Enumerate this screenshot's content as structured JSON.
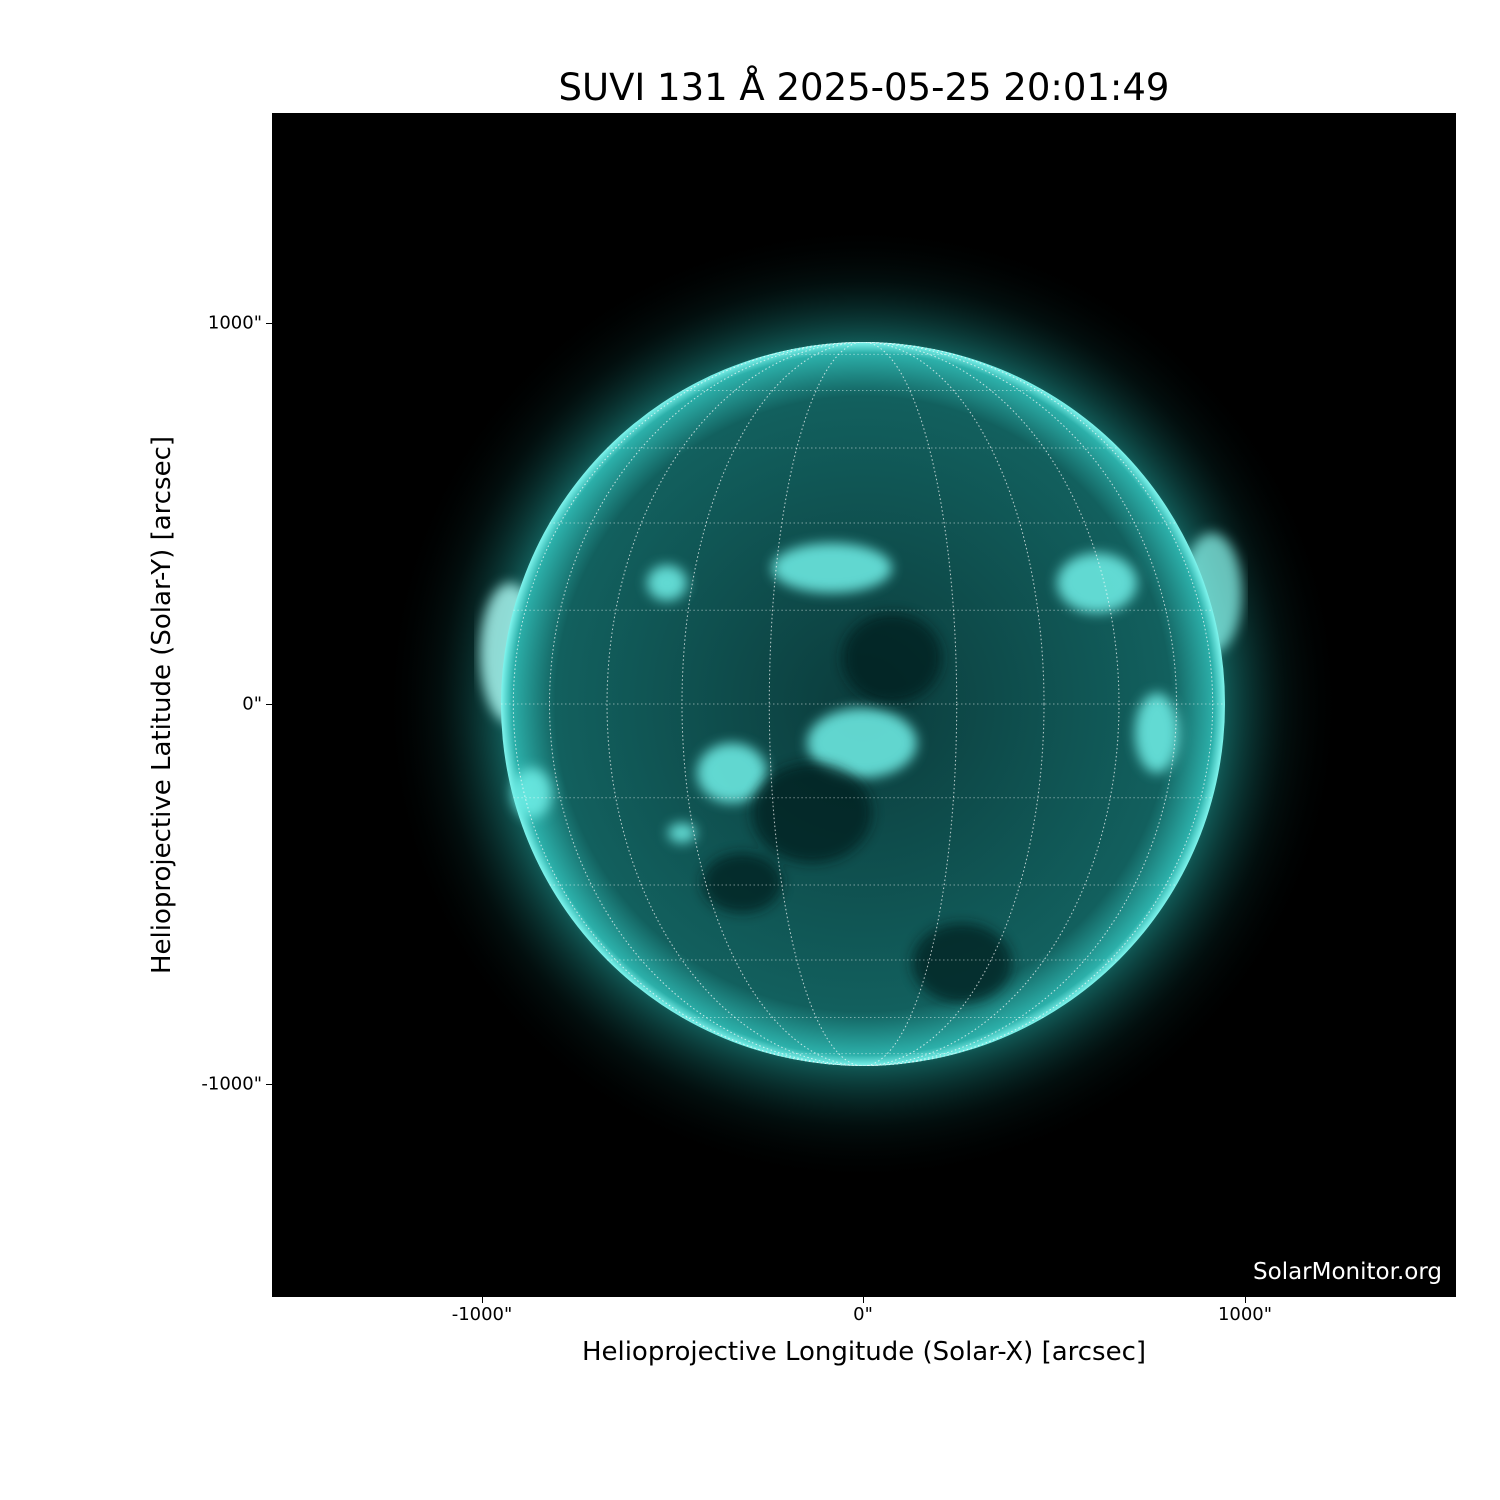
{
  "title": "SUVI 131 Å 2025-05-25 20:01:49",
  "watermark": "SolarMonitor.org",
  "xaxis": {
    "label": "Helioprojective Longitude (Solar-X) [arcsec]",
    "ticks": [
      "-1000\"",
      "0\"",
      "1000\""
    ],
    "tick_values": [
      -1000,
      0,
      1000
    ]
  },
  "yaxis": {
    "label": "Helioprojective Latitude (Solar-Y) [arcsec]",
    "ticks": [
      "1000\"",
      "0\"",
      "-1000\""
    ],
    "tick_values": [
      1000,
      0,
      -1000
    ]
  },
  "colors": {
    "background": "#000000",
    "disk": "#0f5050",
    "limb": "#40e8e0",
    "grid": "#ffffff"
  },
  "grid": "heliographic, dotted"
}
